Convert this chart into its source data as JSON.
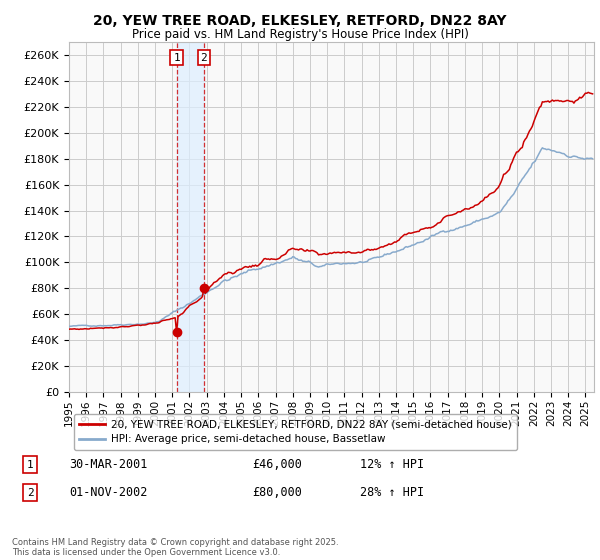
{
  "title_line1": "20, YEW TREE ROAD, ELKESLEY, RETFORD, DN22 8AY",
  "title_line2": "Price paid vs. HM Land Registry's House Price Index (HPI)",
  "ylim": [
    0,
    270000
  ],
  "background_color": "#ffffff",
  "grid_color": "#cccccc",
  "plot_bg_color": "#f9f9f9",
  "red_color": "#cc0000",
  "blue_color": "#88aacc",
  "shade_color": "#ddeeff",
  "legend_label_red": "20, YEW TREE ROAD, ELKESLEY, RETFORD, DN22 8AY (semi-detached house)",
  "legend_label_blue": "HPI: Average price, semi-detached house, Bassetlaw",
  "sale1_date": "30-MAR-2001",
  "sale1_price": "£46,000",
  "sale1_hpi": "12% ↑ HPI",
  "sale1_x": 2001.25,
  "sale1_y": 46000,
  "sale2_date": "01-NOV-2002",
  "sale2_price": "£80,000",
  "sale2_hpi": "28% ↑ HPI",
  "sale2_x": 2002.83,
  "sale2_y": 80000,
  "footnote": "Contains HM Land Registry data © Crown copyright and database right 2025.\nThis data is licensed under the Open Government Licence v3.0.",
  "xmin": 1995,
  "xmax": 2025.5
}
